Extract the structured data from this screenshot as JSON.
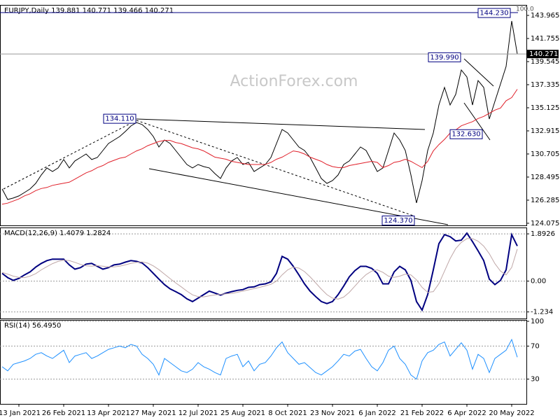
{
  "chart_data": [
    {
      "type": "line",
      "title": "EURJPY,Daily  139.881 140.771 139.466 140.271",
      "watermark": "ActionForex.com",
      "categories": [
        null,
        null,
        null,
        "13 Jan 2021",
        null,
        null,
        null,
        null,
        null,
        null,
        null,
        "26 Feb 2021",
        null,
        null,
        null,
        null,
        null,
        null,
        null,
        "13 Apr 2021",
        null,
        null,
        null,
        null,
        null,
        null,
        null,
        "27 May 2021",
        null,
        null,
        null,
        null,
        null,
        null,
        null,
        "12 Jul 2021",
        null,
        null,
        null,
        null,
        null,
        null,
        null,
        "25 Aug 2021",
        null,
        null,
        null,
        null,
        null,
        null,
        null,
        "8 Oct 2021",
        null,
        null,
        null,
        null,
        null,
        null,
        null,
        "23 Nov 2021",
        null,
        null,
        null,
        null,
        null,
        null,
        null,
        "6 Jan 2022",
        null,
        null,
        null,
        null,
        null,
        null,
        null,
        "21 Feb 2022",
        null,
        null,
        null,
        null,
        null,
        null,
        null,
        "6 Apr 2022",
        null,
        null,
        null,
        null,
        null,
        null,
        null,
        "20 May 2022",
        null
      ],
      "series": [
        {
          "color": "#000000",
          "values": [
            127.36,
            126.35,
            126.49,
            126.69,
            127.02,
            127.36,
            127.89,
            128.7,
            129.37,
            129.03,
            129.37,
            130.17,
            129.37,
            130.04,
            130.37,
            130.7,
            130.17,
            130.37,
            131.04,
            131.71,
            132.04,
            132.38,
            132.85,
            133.38,
            133.72,
            133.52,
            133.05,
            132.38,
            131.37,
            132.04,
            131.71,
            131.04,
            130.37,
            129.7,
            129.37,
            129.7,
            129.5,
            129.37,
            128.83,
            128.36,
            129.37,
            130.04,
            130.37,
            129.7,
            129.9,
            129.03,
            129.37,
            129.7,
            130.37,
            131.71,
            133.05,
            132.71,
            132.04,
            131.37,
            131.04,
            130.37,
            129.37,
            128.36,
            127.89,
            128.16,
            128.7,
            129.7,
            130.04,
            130.7,
            131.37,
            131.04,
            130.04,
            129.03,
            129.37,
            131.04,
            132.71,
            132.04,
            131.04,
            128.7,
            126.02,
            128.16,
            131.04,
            132.71,
            135.39,
            137.07,
            135.39,
            136.4,
            138.74,
            138.07,
            135.39,
            137.73,
            137.07,
            134.05,
            135.73,
            137.4,
            139.08,
            143.43,
            140.271
          ]
        },
        {
          "color": "#e0202a",
          "values": [
            125.9,
            126.0,
            126.2,
            126.4,
            126.7,
            126.9,
            127.2,
            127.4,
            127.5,
            127.7,
            127.8,
            127.9,
            128.0,
            128.3,
            128.6,
            128.9,
            129.1,
            129.4,
            129.6,
            129.9,
            130.1,
            130.3,
            130.4,
            130.7,
            131.0,
            131.2,
            131.5,
            131.7,
            131.9,
            132.0,
            132.0,
            131.8,
            131.7,
            131.5,
            131.3,
            131.2,
            131.0,
            130.7,
            130.4,
            130.3,
            130.2,
            130.0,
            129.9,
            129.8,
            129.7,
            129.7,
            129.7,
            129.7,
            129.9,
            130.2,
            130.4,
            130.7,
            131.0,
            130.9,
            130.7,
            130.4,
            130.2,
            130.0,
            129.7,
            129.5,
            129.4,
            129.4,
            129.6,
            129.7,
            129.8,
            129.9,
            130.0,
            129.9,
            129.4,
            129.6,
            129.9,
            130.0,
            130.2,
            130.0,
            129.7,
            129.4,
            130.0,
            131.0,
            131.6,
            132.1,
            132.7,
            133.0,
            133.4,
            133.6,
            133.8,
            134.1,
            134.3,
            134.6,
            134.9,
            135.1,
            135.8,
            136.1,
            136.9
          ]
        }
      ],
      "ylim": [
        123.87,
        144.97
      ],
      "yticks": [
        143.965,
        141.755,
        139.545,
        137.335,
        135.125,
        132.915,
        130.705,
        128.495,
        126.285,
        124.075
      ],
      "last_price": {
        "value": 140.271,
        "label": "140.271"
      },
      "level_label": "100.0",
      "annotations": [
        {
          "value": 144.23,
          "label": "144.230"
        },
        {
          "value": 139.99,
          "label": "139.990"
        },
        {
          "value": 134.11,
          "label": "134.110"
        },
        {
          "value": 132.63,
          "label": "132.630"
        },
        {
          "value": 124.37,
          "label": "124.370"
        }
      ]
    },
    {
      "type": "line",
      "title": "MACD(12,26,9) 1.4079 1.2824",
      "series": [
        {
          "color": "#000080",
          "values": [
            0.31,
            0.14,
            0.03,
            0.11,
            0.25,
            0.37,
            0.56,
            0.71,
            0.82,
            0.88,
            0.88,
            0.88,
            0.65,
            0.48,
            0.54,
            0.68,
            0.71,
            0.59,
            0.48,
            0.54,
            0.65,
            0.68,
            0.76,
            0.82,
            0.79,
            0.73,
            0.54,
            0.31,
            0.08,
            -0.14,
            -0.31,
            -0.42,
            -0.54,
            -0.71,
            -0.82,
            -0.68,
            -0.54,
            -0.4,
            -0.48,
            -0.56,
            -0.48,
            -0.42,
            -0.37,
            -0.34,
            -0.25,
            -0.23,
            -0.14,
            -0.11,
            -0.03,
            0.31,
            0.99,
            0.88,
            0.59,
            0.25,
            -0.11,
            -0.4,
            -0.62,
            -0.82,
            -0.9,
            -0.82,
            -0.54,
            -0.2,
            0.17,
            0.42,
            0.59,
            0.59,
            0.51,
            0.31,
            -0.11,
            -0.11,
            0.37,
            0.59,
            0.45,
            0.03,
            -0.82,
            -1.16,
            -0.54,
            0.45,
            1.5,
            1.86,
            1.78,
            1.61,
            1.64,
            1.92,
            1.58,
            1.21,
            0.82,
            0.08,
            -0.14,
            0.03,
            0.45,
            1.86,
            1.4079
          ]
        },
        {
          "color": "#c0a8a8",
          "values": [
            0.35,
            0.28,
            0.2,
            0.15,
            0.14,
            0.2,
            0.3,
            0.45,
            0.58,
            0.7,
            0.79,
            0.84,
            0.82,
            0.75,
            0.67,
            0.61,
            0.6,
            0.62,
            0.6,
            0.57,
            0.57,
            0.6,
            0.65,
            0.71,
            0.75,
            0.77,
            0.72,
            0.61,
            0.46,
            0.28,
            0.1,
            -0.07,
            -0.23,
            -0.4,
            -0.55,
            -0.62,
            -0.63,
            -0.59,
            -0.55,
            -0.53,
            -0.51,
            -0.49,
            -0.45,
            -0.4,
            -0.35,
            -0.3,
            -0.25,
            -0.19,
            -0.13,
            0.0,
            0.25,
            0.45,
            0.56,
            0.52,
            0.38,
            0.17,
            -0.07,
            -0.32,
            -0.54,
            -0.68,
            -0.72,
            -0.64,
            -0.45,
            -0.2,
            0.05,
            0.26,
            0.4,
            0.45,
            0.35,
            0.2,
            0.15,
            0.2,
            0.28,
            0.25,
            0.05,
            -0.25,
            -0.45,
            -0.42,
            -0.1,
            0.4,
            0.9,
            1.3,
            1.55,
            1.7,
            1.7,
            1.6,
            1.4,
            1.1,
            0.7,
            0.4,
            0.25,
            0.55,
            1.2824
          ]
        }
      ],
      "ylim": [
        -1.497,
        2.147
      ],
      "yticks": [
        1.8926,
        {
          "value": 0,
          "label": "0.00"
        },
        -1.234
      ]
    },
    {
      "type": "line",
      "title": "RSI(14) 56.4950",
      "series": [
        {
          "color": "#1e90ff",
          "values": [
            45,
            40,
            48,
            50,
            52,
            55,
            60,
            62,
            58,
            55,
            60,
            65,
            50,
            58,
            60,
            62,
            55,
            58,
            62,
            66,
            68,
            70,
            68,
            72,
            70,
            60,
            55,
            48,
            35,
            55,
            50,
            45,
            40,
            38,
            42,
            50,
            45,
            42,
            38,
            35,
            55,
            58,
            60,
            45,
            52,
            40,
            48,
            50,
            58,
            68,
            75,
            62,
            55,
            48,
            50,
            44,
            38,
            35,
            40,
            45,
            52,
            60,
            58,
            64,
            66,
            55,
            45,
            40,
            50,
            65,
            70,
            55,
            48,
            35,
            30,
            52,
            62,
            65,
            72,
            75,
            58,
            66,
            74,
            65,
            42,
            60,
            55,
            38,
            55,
            60,
            65,
            78,
            56.495
          ]
        }
      ],
      "ylim": [
        0,
        101.7
      ],
      "yticks": [
        100,
        70,
        30
      ]
    }
  ]
}
